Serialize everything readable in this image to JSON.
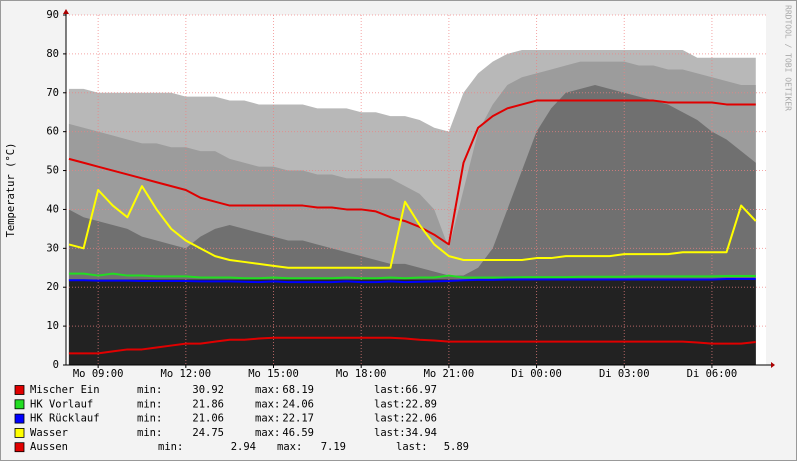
{
  "chart_data": {
    "type": "line",
    "y_label": "Temperatur (°C)",
    "watermark": "RRDTOOL / TOBI OETIKER",
    "stat_labels": [
      "min:",
      "max:",
      "last:"
    ],
    "xlim": [
      7.9,
      31.85
    ],
    "xticks": [
      {
        "value": 9,
        "label": "Mo 09:00"
      },
      {
        "value": 12,
        "label": "Mo 12:00"
      },
      {
        "value": 15,
        "label": "Mo 15:00"
      },
      {
        "value": 18,
        "label": "Mo 18:00"
      },
      {
        "value": 21,
        "label": "Mo 21:00"
      },
      {
        "value": 24,
        "label": "Di 00:00"
      },
      {
        "value": 27,
        "label": "Di 03:00"
      },
      {
        "value": 30,
        "label": "Di 06:00"
      }
    ],
    "ylim": [
      0,
      90
    ],
    "yticks": [
      0,
      10,
      20,
      30,
      40,
      50,
      60,
      70,
      80,
      90
    ],
    "grid": true,
    "x": [
      8,
      8.5,
      9,
      9.5,
      10,
      10.5,
      11,
      11.5,
      12,
      12.5,
      13,
      13.5,
      14,
      14.5,
      15,
      15.5,
      16,
      16.5,
      17,
      17.5,
      18,
      18.5,
      19,
      19.5,
      20,
      20.5,
      21,
      21.5,
      22,
      22.5,
      23,
      23.5,
      24,
      24.5,
      25,
      25.5,
      26,
      26.5,
      27,
      27.5,
      28,
      28.5,
      29,
      29.5,
      30,
      30.5,
      31,
      31.5
    ],
    "bands": [
      {
        "color": "#b8b8b8",
        "values": [
          71,
          71,
          70,
          70,
          70,
          70,
          70,
          70,
          69,
          69,
          69,
          68,
          68,
          67,
          67,
          67,
          67,
          66,
          66,
          66,
          65,
          65,
          64,
          64,
          63,
          61,
          60,
          70,
          75,
          78,
          80,
          81,
          81,
          81,
          81,
          81,
          81,
          81,
          81,
          81,
          81,
          81,
          81,
          79,
          79,
          79,
          79,
          79
        ]
      },
      {
        "color": "#9c9c9c",
        "values": [
          62,
          61,
          60,
          59,
          58,
          57,
          57,
          56,
          56,
          55,
          55,
          53,
          52,
          51,
          51,
          50,
          50,
          49,
          49,
          48,
          48,
          48,
          48,
          46,
          44,
          40,
          30,
          45,
          60,
          67,
          72,
          74,
          75,
          76,
          77,
          78,
          78,
          78,
          78,
          77,
          77,
          76,
          76,
          75,
          74,
          73,
          72,
          72
        ]
      },
      {
        "color": "#707070",
        "values": [
          40,
          38,
          37,
          36,
          35,
          33,
          32,
          31,
          30,
          33,
          35,
          36,
          35,
          34,
          33,
          32,
          32,
          31,
          30,
          29,
          28,
          27,
          26,
          26,
          25,
          24,
          23,
          23,
          25,
          30,
          40,
          50,
          60,
          66,
          70,
          71,
          72,
          71,
          70,
          69,
          68,
          67,
          65,
          63,
          60,
          58,
          55,
          52
        ]
      },
      {
        "color": "#222222",
        "values": [
          22,
          22,
          22,
          22,
          22,
          22,
          22,
          22,
          22,
          22,
          22,
          22,
          22,
          22,
          22,
          22,
          22,
          22,
          22,
          22,
          22,
          22,
          22,
          22,
          22,
          22,
          22,
          22,
          22,
          22,
          22,
          22,
          22,
          22,
          22,
          22,
          22,
          22,
          22,
          22,
          22,
          22,
          22,
          22,
          22,
          22,
          22,
          22
        ]
      }
    ],
    "series": [
      {
        "name": "Mischer Ein",
        "color": "#e00000",
        "min": 30.92,
        "max": 68.19,
        "last": 66.97,
        "values": [
          53,
          52,
          51,
          50,
          49,
          48,
          47,
          46,
          45,
          43,
          42,
          41,
          41,
          41,
          41,
          41,
          41,
          40.5,
          40.5,
          40,
          40,
          39.5,
          38,
          37,
          35.5,
          33.5,
          31,
          52,
          61,
          64,
          66,
          67,
          68,
          68,
          68,
          68,
          68,
          68,
          68,
          68,
          68,
          67.5,
          67.5,
          67.5,
          67.5,
          67,
          67,
          67
        ]
      },
      {
        "name": "HK Vorlauf",
        "color": "#22dd22",
        "min": 21.86,
        "max": 24.06,
        "last": 22.89,
        "values": [
          23.5,
          23.5,
          23,
          23.5,
          23,
          23,
          22.8,
          22.8,
          22.8,
          22.5,
          22.5,
          22.5,
          22.3,
          22.3,
          22.5,
          22.3,
          22.3,
          22.3,
          22.3,
          22.5,
          22.3,
          22.3,
          22.5,
          22.3,
          22.5,
          22.5,
          23,
          22.5,
          22.5,
          22.5,
          22.5,
          22.6,
          22.6,
          22.6,
          22.6,
          22.7,
          22.7,
          22.7,
          22.7,
          22.8,
          22.8,
          22.8,
          22.8,
          22.8,
          22.8,
          22.9,
          22.9,
          22.9
        ]
      },
      {
        "name": "HK Rücklauf",
        "color": "#0000ff",
        "min": 21.06,
        "max": 22.17,
        "last": 22.06,
        "values": [
          21.8,
          21.8,
          21.7,
          21.7,
          21.7,
          21.6,
          21.6,
          21.6,
          21.6,
          21.5,
          21.5,
          21.5,
          21.4,
          21.3,
          21.5,
          21.3,
          21.3,
          21.3,
          21.3,
          21.5,
          21.3,
          21.3,
          21.5,
          21.3,
          21.4,
          21.5,
          21.6,
          21.8,
          21.9,
          21.9,
          22,
          22,
          22,
          22,
          22,
          22,
          22,
          22,
          22,
          22,
          22,
          22,
          22,
          22,
          22,
          22.1,
          22.1,
          22.1
        ]
      },
      {
        "name": "Wasser",
        "color": "#ffff00",
        "min": 24.75,
        "max": 46.59,
        "last": 34.94,
        "values": [
          31,
          30,
          45,
          41,
          38,
          46,
          40,
          35,
          32,
          30,
          28,
          27,
          26.5,
          26,
          25.5,
          25,
          25,
          25,
          25,
          25,
          25,
          25,
          25,
          42,
          36,
          31,
          28,
          27,
          27,
          27,
          27,
          27,
          27.5,
          27.5,
          28,
          28,
          28,
          28,
          28.5,
          28.5,
          28.5,
          28.5,
          29,
          29,
          29,
          29,
          41,
          37
        ]
      },
      {
        "name": "Aussen",
        "color": "#e00000",
        "min": 2.94,
        "max": 7.19,
        "last": 5.89,
        "values": [
          3,
          3,
          3,
          3.5,
          4,
          4,
          4.5,
          5,
          5.5,
          5.5,
          6,
          6.5,
          6.5,
          6.8,
          7,
          7,
          7,
          7,
          7,
          7,
          7,
          7,
          7,
          6.8,
          6.5,
          6.3,
          6,
          6,
          6,
          6,
          6,
          6,
          6,
          6,
          6,
          6,
          6,
          6,
          6,
          6,
          6,
          6,
          6,
          5.8,
          5.5,
          5.5,
          5.5,
          5.9
        ]
      }
    ]
  }
}
